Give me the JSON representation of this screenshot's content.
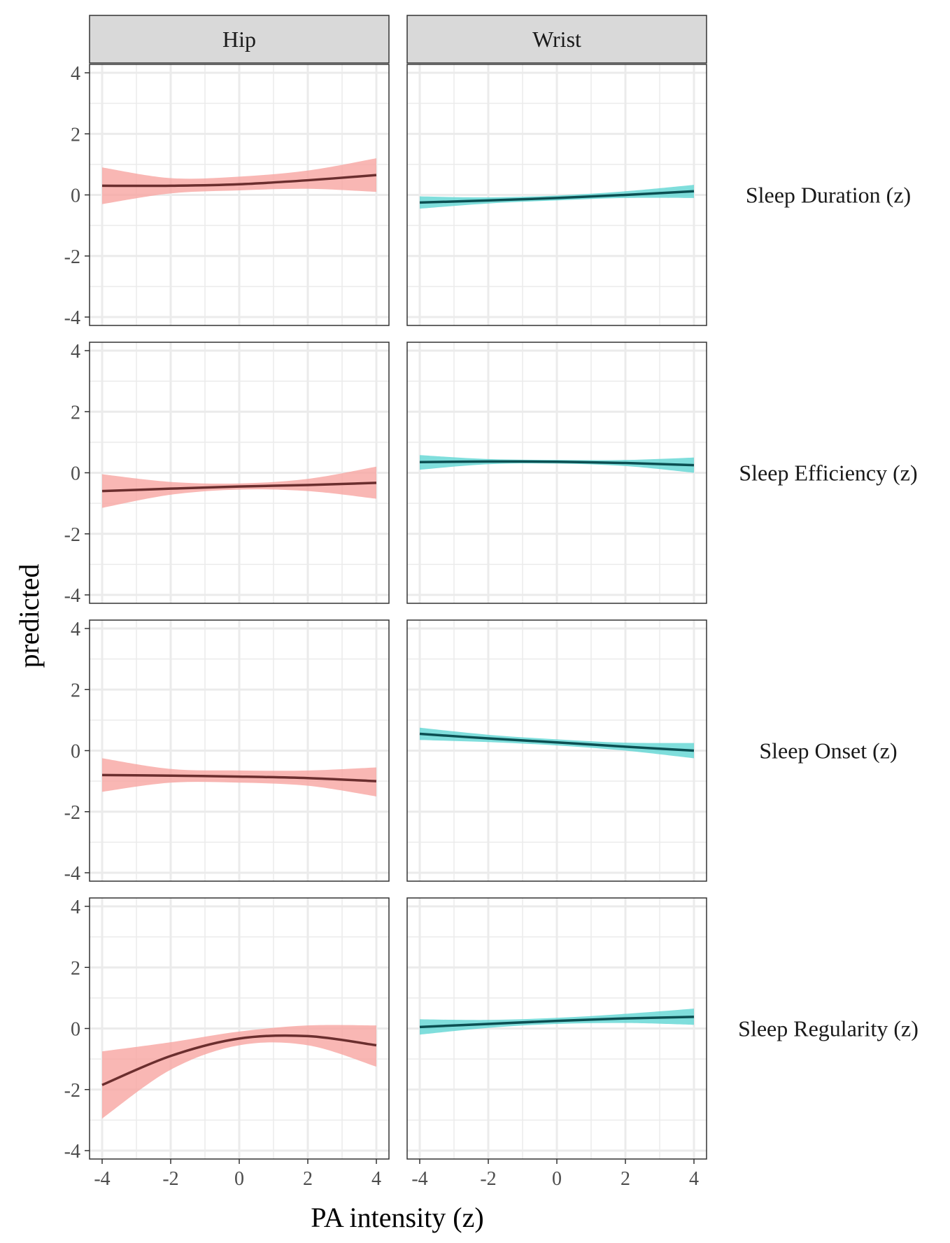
{
  "chart_data": {
    "type": "line",
    "facet_columns": [
      "Hip",
      "Wrist"
    ],
    "facet_rows": [
      "Sleep Duration (z)",
      "Sleep Efficiency (z)",
      "Sleep Onset (z)",
      "Sleep Regularity (z)"
    ],
    "xlabel": "PA intensity (z)",
    "ylabel": "predicted",
    "xlim": [
      -4,
      4
    ],
    "ylim": [
      -4,
      4
    ],
    "x_ticks": [
      -4,
      -2,
      0,
      2,
      4
    ],
    "y_ticks": [
      -4,
      -2,
      0,
      2,
      4
    ],
    "x_tick_labels": [
      "-4",
      "-2",
      "0",
      "2",
      "4"
    ],
    "y_tick_labels": [
      "-4",
      "-2",
      "0",
      "2",
      "4"
    ],
    "grid": true,
    "legend": "none",
    "colors": {
      "Hip": {
        "line": "#6b2e2e",
        "ribbon": "#f8a5a1"
      },
      "Wrist": {
        "line": "#0b4f52",
        "ribbon": "#5fd6d3"
      },
      "strip_fill": "#d9d9d9",
      "grid": "#ebebeb",
      "panel_border": "#333333"
    },
    "x": [
      -4,
      -2,
      0,
      2,
      4
    ],
    "panels": [
      {
        "row": "Sleep Duration (z)",
        "column": "Hip",
        "predicted": [
          0.3,
          0.3,
          0.35,
          0.48,
          0.65
        ],
        "lower": [
          -0.3,
          0.05,
          0.15,
          0.2,
          0.1
        ],
        "upper": [
          0.9,
          0.55,
          0.6,
          0.8,
          1.2
        ]
      },
      {
        "row": "Sleep Duration (z)",
        "column": "Wrist",
        "predicted": [
          -0.25,
          -0.18,
          -0.1,
          0.0,
          0.12
        ],
        "lower": [
          -0.45,
          -0.28,
          -0.18,
          -0.1,
          -0.1
        ],
        "upper": [
          -0.05,
          -0.08,
          -0.02,
          0.12,
          0.33
        ]
      },
      {
        "row": "Sleep Efficiency (z)",
        "column": "Hip",
        "predicted": [
          -0.6,
          -0.52,
          -0.45,
          -0.4,
          -0.33
        ],
        "lower": [
          -1.15,
          -0.72,
          -0.55,
          -0.6,
          -0.85
        ],
        "upper": [
          -0.05,
          -0.3,
          -0.35,
          -0.2,
          0.2
        ]
      },
      {
        "row": "Sleep Efficiency (z)",
        "column": "Wrist",
        "predicted": [
          0.35,
          0.37,
          0.36,
          0.32,
          0.25
        ],
        "lower": [
          0.1,
          0.28,
          0.3,
          0.22,
          0.0
        ],
        "upper": [
          0.58,
          0.45,
          0.42,
          0.42,
          0.5
        ]
      },
      {
        "row": "Sleep Onset (z)",
        "column": "Hip",
        "predicted": [
          -0.8,
          -0.82,
          -0.85,
          -0.9,
          -1.0
        ],
        "lower": [
          -1.35,
          -1.05,
          -1.05,
          -1.15,
          -1.5
        ],
        "upper": [
          -0.25,
          -0.6,
          -0.65,
          -0.65,
          -0.55
        ]
      },
      {
        "row": "Sleep Onset (z)",
        "column": "Wrist",
        "predicted": [
          0.55,
          0.4,
          0.27,
          0.13,
          0.0
        ],
        "lower": [
          0.35,
          0.28,
          0.17,
          0.0,
          -0.25
        ],
        "upper": [
          0.75,
          0.52,
          0.37,
          0.26,
          0.25
        ]
      },
      {
        "row": "Sleep Regularity (z)",
        "column": "Hip",
        "predicted": [
          -1.85,
          -0.9,
          -0.33,
          -0.25,
          -0.55
        ],
        "lower": [
          -2.95,
          -1.35,
          -0.55,
          -0.55,
          -1.25
        ],
        "upper": [
          -0.75,
          -0.45,
          -0.1,
          0.1,
          0.1
        ]
      },
      {
        "row": "Sleep Regularity (z)",
        "column": "Wrist",
        "predicted": [
          0.05,
          0.15,
          0.25,
          0.33,
          0.38
        ],
        "lower": [
          -0.2,
          0.02,
          0.15,
          0.18,
          0.12
        ],
        "upper": [
          0.3,
          0.28,
          0.35,
          0.48,
          0.65
        ]
      }
    ]
  }
}
